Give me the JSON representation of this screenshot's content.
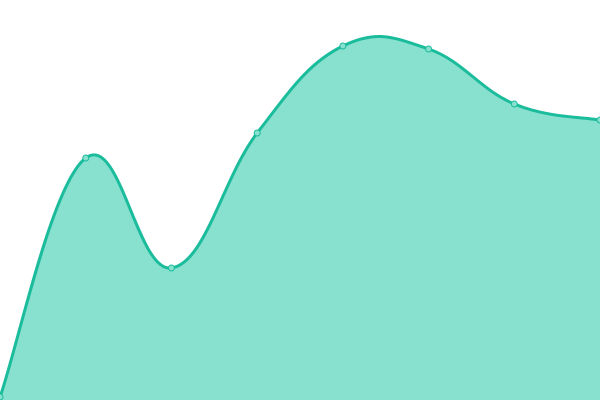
{
  "chart_data": {
    "type": "area",
    "title": "",
    "xlabel": "",
    "ylabel": "",
    "x": [
      0,
      1,
      2,
      3,
      4,
      5,
      6,
      7
    ],
    "values": [
      3,
      242,
      132,
      267,
      354,
      351,
      296,
      280
    ],
    "ylim": [
      0,
      400
    ],
    "xlim": [
      0,
      7
    ],
    "grid": false,
    "axes_visible": false,
    "curve": "smooth",
    "colors": {
      "line": "#1abc9c",
      "fill": "#88e0cf",
      "point": "#88e0cf"
    }
  }
}
